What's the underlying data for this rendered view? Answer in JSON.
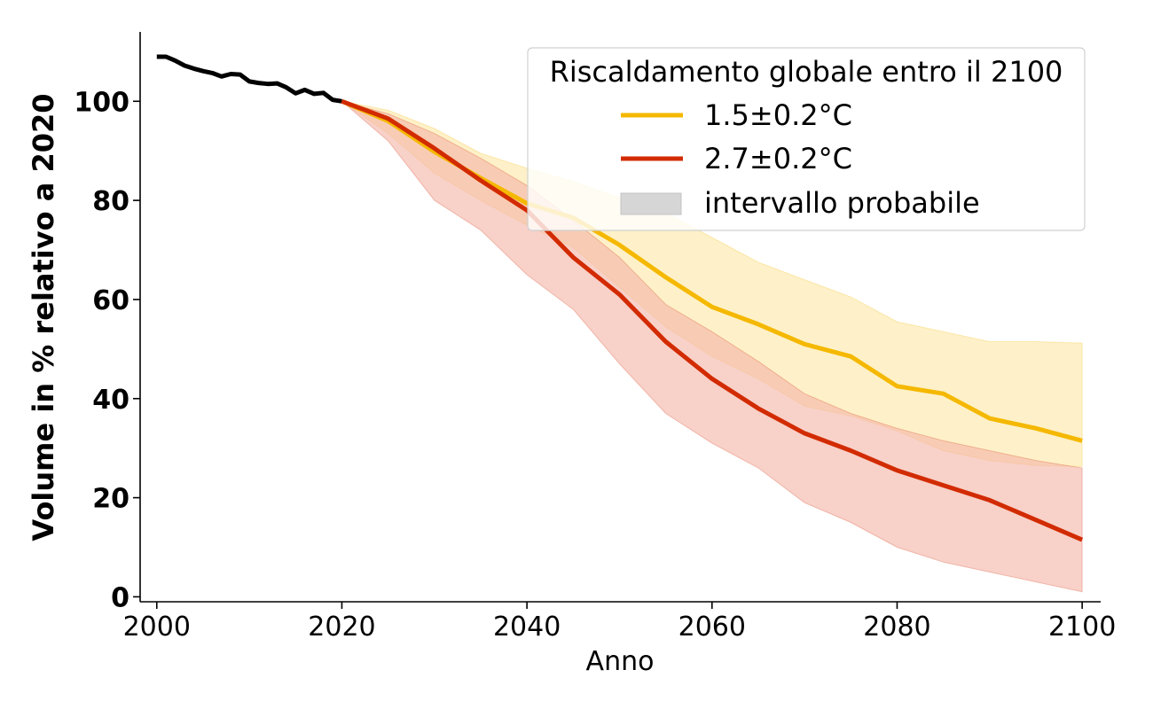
{
  "chart_data": {
    "type": "line",
    "xlabel": "Anno",
    "ylabel": "Volume in % relativo a 2020",
    "xlim": [
      1998.2,
      2102
    ],
    "ylim": [
      -1,
      114
    ],
    "x_ticks": [
      2000,
      2020,
      2040,
      2060,
      2080,
      2100
    ],
    "y_ticks": [
      0,
      20,
      40,
      60,
      80,
      100
    ],
    "legend": {
      "title": "Riscaldamento globale entro il 2100",
      "position": "top-right",
      "range_label": "intervallo probabile"
    },
    "observed": {
      "color": "#000000",
      "x": [
        2000,
        2001,
        2002,
        2003,
        2004,
        2005,
        2006,
        2007,
        2008,
        2009,
        2010,
        2011,
        2012,
        2013,
        2014,
        2015,
        2016,
        2017,
        2018,
        2019,
        2020
      ],
      "y": [
        109,
        109,
        108.2,
        107.2,
        106.6,
        106.1,
        105.7,
        105,
        105.5,
        105.4,
        104,
        103.7,
        103.5,
        103.6,
        102.8,
        101.6,
        102.3,
        101.5,
        101.7,
        100.3,
        100
      ]
    },
    "series": [
      {
        "name": "1.5±0.2°C",
        "color": "#f5b800",
        "band_color": "#fde8a8",
        "x": [
          2020,
          2025,
          2030,
          2035,
          2040,
          2045,
          2050,
          2055,
          2060,
          2065,
          2070,
          2075,
          2080,
          2085,
          2090,
          2095,
          2100
        ],
        "y": [
          100,
          96,
          89.8,
          84.5,
          79.4,
          76.5,
          71,
          64.5,
          58.5,
          55,
          51,
          48.5,
          42.5,
          41,
          36,
          34,
          31.5
        ],
        "upper": [
          100,
          98.2,
          94.5,
          89.5,
          86.5,
          83.8,
          80.5,
          77.5,
          72.5,
          67.5,
          64,
          60.5,
          55.5,
          53.5,
          51.5,
          51.5,
          51.2
        ],
        "lower": [
          100,
          93.5,
          85.5,
          80,
          75,
          70.5,
          62.5,
          54.5,
          48.5,
          44,
          38.5,
          36.5,
          33.5,
          29.5,
          27.5,
          26.5,
          26.3
        ]
      },
      {
        "name": "2.7±0.2°C",
        "color": "#d22b00",
        "band_color": "#f4b5a8",
        "x": [
          2020,
          2025,
          2030,
          2035,
          2040,
          2045,
          2050,
          2055,
          2060,
          2065,
          2070,
          2075,
          2080,
          2085,
          2090,
          2095,
          2100
        ],
        "y": [
          100,
          96.5,
          90.5,
          84,
          78,
          68.5,
          61,
          51.5,
          44,
          38,
          33,
          29.5,
          25.5,
          22.5,
          19.5,
          15.5,
          11.5
        ],
        "upper": [
          100,
          97.5,
          93.5,
          88.5,
          83,
          76,
          68.5,
          59,
          53.5,
          47.5,
          41,
          37,
          34,
          31.5,
          29.5,
          27.5,
          26
        ],
        "lower": [
          100,
          92,
          80,
          74,
          65,
          58,
          47,
          37,
          31,
          26,
          19,
          15,
          10,
          7,
          5,
          3,
          1
        ]
      }
    ]
  }
}
